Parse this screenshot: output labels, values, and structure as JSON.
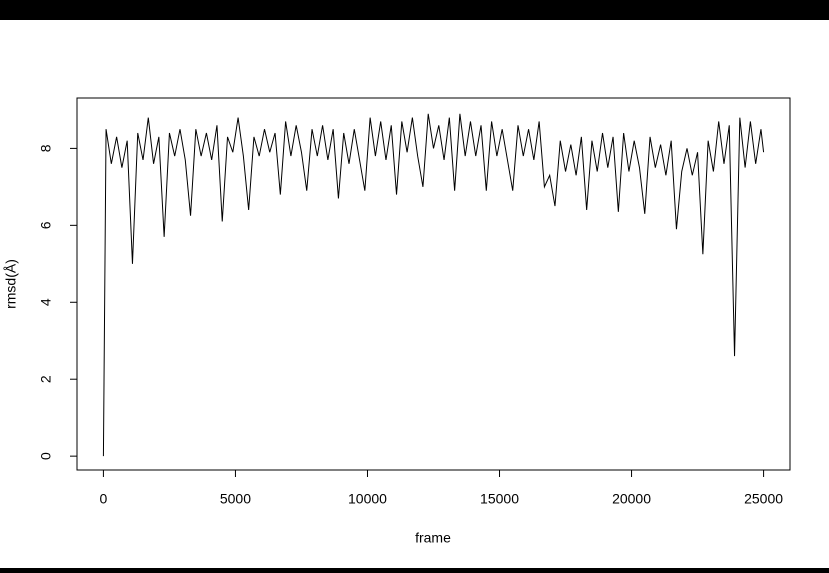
{
  "chart_data": {
    "type": "line",
    "xlabel": "frame",
    "ylabel": "rmsd(Å)",
    "color": "#000000",
    "xlim": [
      -1000,
      26000
    ],
    "ylim": [
      -0.36,
      9.31
    ],
    "xticks": [
      0,
      5000,
      10000,
      15000,
      20000,
      25000
    ],
    "yticks": [
      0,
      2,
      4,
      6,
      8
    ],
    "x": [
      0,
      100,
      300,
      500,
      700,
      900,
      1100,
      1300,
      1500,
      1700,
      1900,
      2100,
      2300,
      2500,
      2700,
      2900,
      3100,
      3300,
      3500,
      3700,
      3900,
      4100,
      4300,
      4500,
      4700,
      4900,
      5100,
      5300,
      5500,
      5700,
      5900,
      6100,
      6300,
      6500,
      6700,
      6900,
      7100,
      7300,
      7500,
      7700,
      7900,
      8100,
      8300,
      8500,
      8700,
      8900,
      9100,
      9300,
      9500,
      9700,
      9900,
      10100,
      10300,
      10500,
      10700,
      10900,
      11100,
      11300,
      11500,
      11700,
      11900,
      12100,
      12300,
      12500,
      12700,
      12900,
      13100,
      13300,
      13500,
      13700,
      13900,
      14100,
      14300,
      14500,
      14700,
      14900,
      15100,
      15300,
      15500,
      15700,
      15900,
      16100,
      16300,
      16500,
      16700,
      16900,
      17100,
      17300,
      17500,
      17700,
      17900,
      18100,
      18300,
      18500,
      18700,
      18900,
      19100,
      19300,
      19500,
      19700,
      19900,
      20100,
      20300,
      20500,
      20700,
      20900,
      21100,
      21300,
      21500,
      21700,
      21900,
      22100,
      22300,
      22500,
      22700,
      22900,
      23100,
      23300,
      23500,
      23700,
      23900,
      24100,
      24300,
      24500,
      24700,
      24900,
      25000
    ],
    "values": [
      0,
      8.5,
      7.6,
      8.3,
      7.5,
      8.2,
      5.0,
      8.4,
      7.7,
      8.8,
      7.6,
      8.3,
      5.7,
      8.4,
      7.8,
      8.5,
      7.7,
      6.25,
      8.5,
      7.8,
      8.4,
      7.7,
      8.6,
      6.1,
      8.3,
      7.9,
      8.8,
      7.8,
      6.4,
      8.3,
      7.8,
      8.5,
      7.9,
      8.4,
      6.8,
      8.7,
      7.8,
      8.6,
      7.9,
      6.9,
      8.5,
      7.8,
      8.6,
      7.7,
      8.5,
      6.7,
      8.4,
      7.6,
      8.5,
      7.7,
      6.9,
      8.8,
      7.8,
      8.7,
      7.7,
      8.6,
      6.8,
      8.7,
      7.9,
      8.8,
      7.8,
      7.0,
      8.9,
      8.0,
      8.6,
      7.7,
      8.8,
      6.9,
      8.9,
      7.8,
      8.7,
      7.8,
      8.6,
      6.9,
      8.7,
      7.8,
      8.5,
      7.7,
      6.9,
      8.6,
      7.8,
      8.5,
      7.7,
      8.7,
      7.0,
      7.3,
      6.5,
      8.2,
      7.4,
      8.1,
      7.3,
      8.3,
      6.4,
      8.2,
      7.4,
      8.4,
      7.5,
      8.3,
      6.35,
      8.4,
      7.4,
      8.2,
      7.5,
      6.3,
      8.3,
      7.5,
      8.1,
      7.3,
      8.2,
      5.9,
      7.4,
      8.0,
      7.3,
      7.9,
      5.25,
      8.2,
      7.4,
      8.7,
      7.6,
      8.6,
      2.6,
      8.8,
      7.5,
      8.7,
      7.6,
      8.5,
      7.9
    ]
  }
}
